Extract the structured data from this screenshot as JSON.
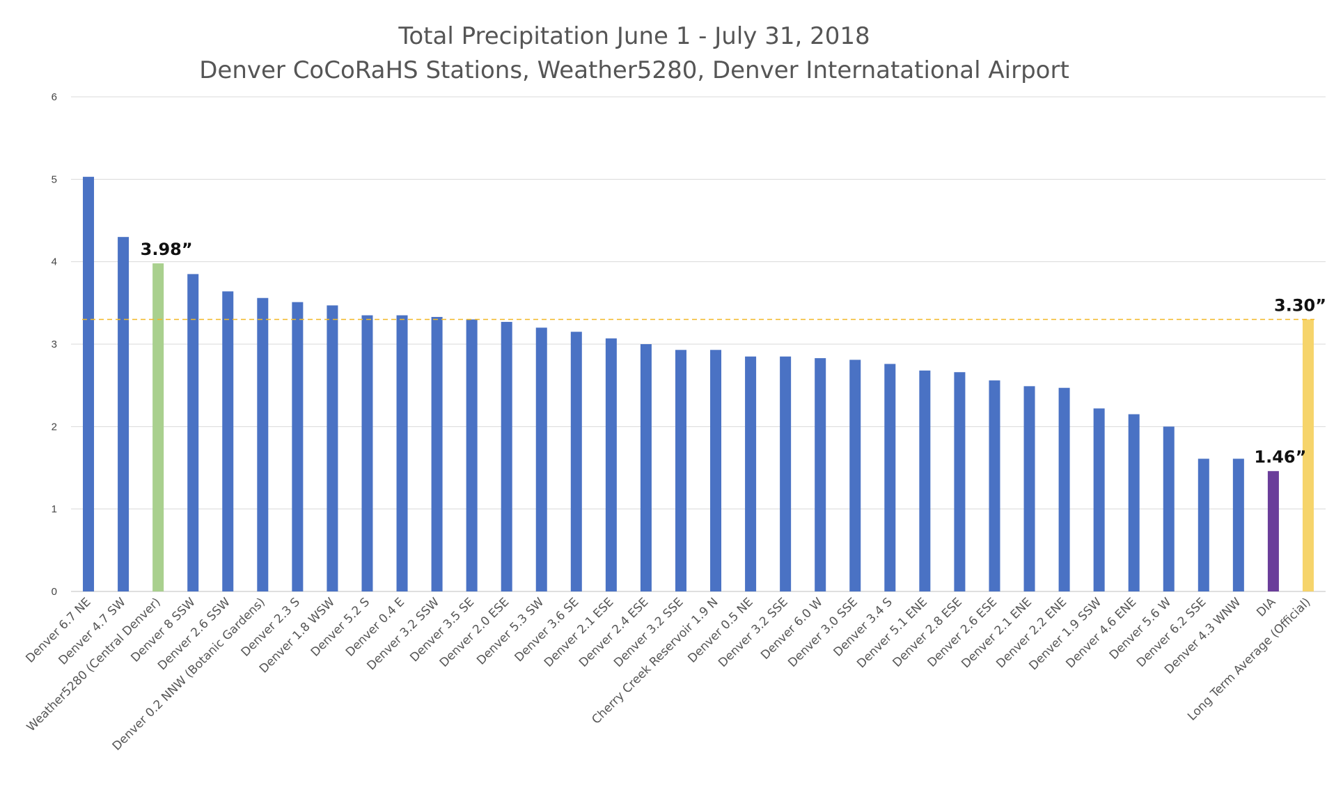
{
  "chart_data": {
    "type": "bar",
    "title": "Total Precipitation June 1 - July 31, 2018",
    "subtitle": "Denver CoCoRaHS Stations, Weather5280, Denver Internatational Airport",
    "xlabel": "",
    "ylabel": "",
    "ylim": [
      0,
      6
    ],
    "yticks": [
      "0",
      "1",
      "2",
      "3",
      "4",
      "5",
      "6"
    ],
    "grid": true,
    "categories": [
      "Denver 6.7 NE",
      "Denver 4.7 SW",
      "Weather5280 (Central Denver)",
      "Denver 8 SSW",
      "Denver 2.6 SSW",
      "Denver 0.2 NNW (Botanic Gardens)",
      "Denver 2.3 S",
      "Denver 1.8 WSW",
      "Denver 5.2 S",
      "Denver 0.4 E",
      "Denver 3.2 SSW",
      "Denver 3.5 SE",
      "Denver 2.0 ESE",
      "Denver 5.3 SW",
      "Denver 3.6 SE",
      "Denver 2.1 ESE",
      "Denver 2.4 ESE",
      "Denver 3.2 SSE",
      "Cherry Creek Reservoir 1.9 N",
      "Denver 0.5 NE",
      "Denver 3.2 SSE",
      "Denver 6.0 W",
      "Denver 3.0 SSE",
      "Denver 3.4 S",
      "Denver 5.1 ENE",
      "Denver 2.8 ESE",
      "Denver 2.6 ESE",
      "Denver 2.1 ENE",
      "Denver 2.2 ENE",
      "Denver 1.9 SSW",
      "Denver 4.6 ENE",
      "Denver 5.6 W",
      "Denver 6.2 SSE",
      "Denver 4.3 WNW",
      "DIA",
      "Long Term Average (Official)"
    ],
    "values": [
      5.03,
      4.3,
      3.98,
      3.85,
      3.64,
      3.56,
      3.51,
      3.47,
      3.35,
      3.35,
      3.33,
      3.3,
      3.27,
      3.2,
      3.15,
      3.07,
      3.0,
      2.93,
      2.93,
      2.85,
      2.85,
      2.83,
      2.81,
      2.76,
      2.68,
      2.66,
      2.56,
      2.49,
      2.47,
      2.22,
      2.15,
      2.0,
      1.61,
      1.61,
      1.46,
      3.3
    ],
    "colors": {
      "default": "#4a72c4",
      "highlight": {
        "Weather5280 (Central Denver)": "#a9d08e",
        "DIA": "#6a3d9a",
        "Long Term Average (Official)": "#f6d46b"
      },
      "reference_line": "#f2b824",
      "grid": "#d9d9d9"
    },
    "reference_line": {
      "value": 3.3,
      "style": "dashed"
    },
    "annotations": [
      {
        "category": "Weather5280 (Central Denver)",
        "text": "3.98”"
      },
      {
        "category": "DIA",
        "text": "1.46”"
      },
      {
        "category": "Long Term Average (Official)",
        "text": "3.30”"
      }
    ]
  }
}
